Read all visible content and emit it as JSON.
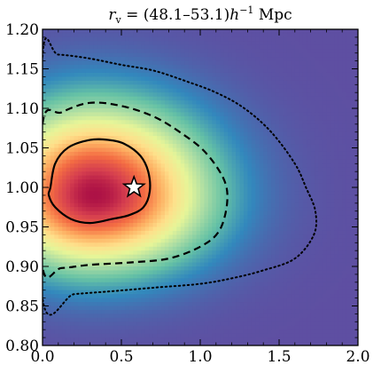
{
  "chart_data": {
    "type": "heatmap",
    "title": {
      "var": "r",
      "sub": "v",
      "eq": " = (48.1–53.1)",
      "h": "h",
      "sup": "−1",
      "unit": " Mpc"
    },
    "xlabel": "",
    "ylabel": "",
    "xlim": [
      0.0,
      2.0
    ],
    "ylim": [
      0.8,
      1.2
    ],
    "xticks": [
      "0.0",
      "0.5",
      "1.0",
      "1.5",
      "2.0"
    ],
    "yticks": [
      "0.80",
      "0.85",
      "0.90",
      "0.95",
      "1.00",
      "1.05",
      "1.10",
      "1.15",
      "1.20"
    ],
    "colormap": [
      "#5e4fa2",
      "#3288bd",
      "#66c2a5",
      "#abdda4",
      "#e6f598",
      "#fee08b",
      "#fdae61",
      "#f46d43",
      "#d53e4f",
      "#9e0142"
    ],
    "background_color": "#5e4fa2",
    "density_peak": {
      "x": 0.33,
      "y": 0.99
    },
    "star_marker": {
      "x": 0.58,
      "y": 1.0
    },
    "contours": [
      {
        "level": "inner",
        "style": "solid",
        "points": [
          [
            0.05,
            1.0
          ],
          [
            0.08,
            1.03
          ],
          [
            0.16,
            1.05
          ],
          [
            0.3,
            1.06
          ],
          [
            0.42,
            1.06
          ],
          [
            0.52,
            1.055
          ],
          [
            0.62,
            1.04
          ],
          [
            0.67,
            1.02
          ],
          [
            0.68,
            0.995
          ],
          [
            0.64,
            0.975
          ],
          [
            0.55,
            0.965
          ],
          [
            0.44,
            0.96
          ],
          [
            0.3,
            0.955
          ],
          [
            0.18,
            0.96
          ],
          [
            0.08,
            0.975
          ],
          [
            0.04,
            0.99
          ]
        ]
      },
      {
        "level": "middle",
        "style": "dashed",
        "points": [
          [
            0.0,
            1.08
          ],
          [
            0.12,
            1.095
          ],
          [
            0.3,
            1.107
          ],
          [
            0.5,
            1.103
          ],
          [
            0.7,
            1.09
          ],
          [
            0.87,
            1.07
          ],
          [
            1.03,
            1.045
          ],
          [
            1.15,
            1.01
          ],
          [
            1.17,
            0.98
          ],
          [
            1.12,
            0.945
          ],
          [
            1.0,
            0.925
          ],
          [
            0.8,
            0.91
          ],
          [
            0.55,
            0.905
          ],
          [
            0.3,
            0.902
          ],
          [
            0.12,
            0.898
          ],
          [
            0.0,
            0.9
          ]
        ]
      },
      {
        "level": "outer",
        "style": "dotted",
        "points": [
          [
            0.0,
            1.165
          ],
          [
            0.1,
            1.168
          ],
          [
            0.3,
            1.163
          ],
          [
            0.5,
            1.155
          ],
          [
            0.7,
            1.148
          ],
          [
            0.9,
            1.135
          ],
          [
            1.1,
            1.12
          ],
          [
            1.28,
            1.1
          ],
          [
            1.45,
            1.07
          ],
          [
            1.6,
            1.03
          ],
          [
            1.67,
            1.0
          ],
          [
            1.73,
            0.97
          ],
          [
            1.72,
            0.94
          ],
          [
            1.6,
            0.91
          ],
          [
            1.4,
            0.895
          ],
          [
            1.2,
            0.885
          ],
          [
            1.0,
            0.878
          ],
          [
            0.7,
            0.873
          ],
          [
            0.4,
            0.868
          ],
          [
            0.2,
            0.865
          ],
          [
            0.0,
            0.86
          ]
        ]
      }
    ]
  }
}
